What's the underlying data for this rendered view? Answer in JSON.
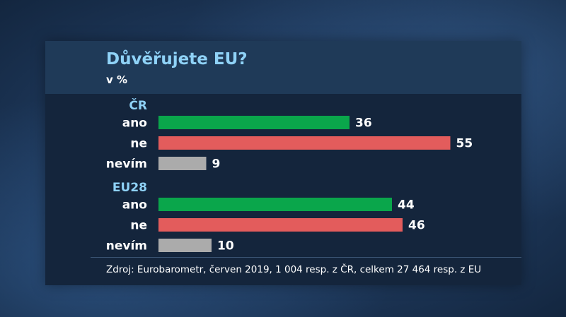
{
  "chart_data": {
    "type": "bar",
    "orientation": "horizontal",
    "title": "Důvěřujete EU?",
    "subtitle": "v %",
    "groups": [
      {
        "label": "ČR",
        "bars": [
          {
            "label": "ano",
            "value": 36,
            "color": "#0aa64b"
          },
          {
            "label": "ne",
            "value": 55,
            "color": "#e35c5c"
          },
          {
            "label": "nevím",
            "value": 9,
            "color": "#ababab"
          }
        ]
      },
      {
        "label": "EU28",
        "bars": [
          {
            "label": "ano",
            "value": 44,
            "color": "#0aa64b"
          },
          {
            "label": "ne",
            "value": 46,
            "color": "#e35c5c"
          },
          {
            "label": "nevím",
            "value": 10,
            "color": "#ababab"
          }
        ]
      }
    ],
    "xlim": [
      0,
      100
    ],
    "grid": false,
    "legend": "none",
    "source": "Zdroj: Eurobarometr, červen 2019, 1 004 resp. z ČR, celkem 27 464 resp. z EU"
  },
  "colors": {
    "title": "#8fd2f7",
    "group_label": "#8fd2f7",
    "text": "#ffffff",
    "panel": "#14253c",
    "panel_header": "#1f3a58"
  }
}
